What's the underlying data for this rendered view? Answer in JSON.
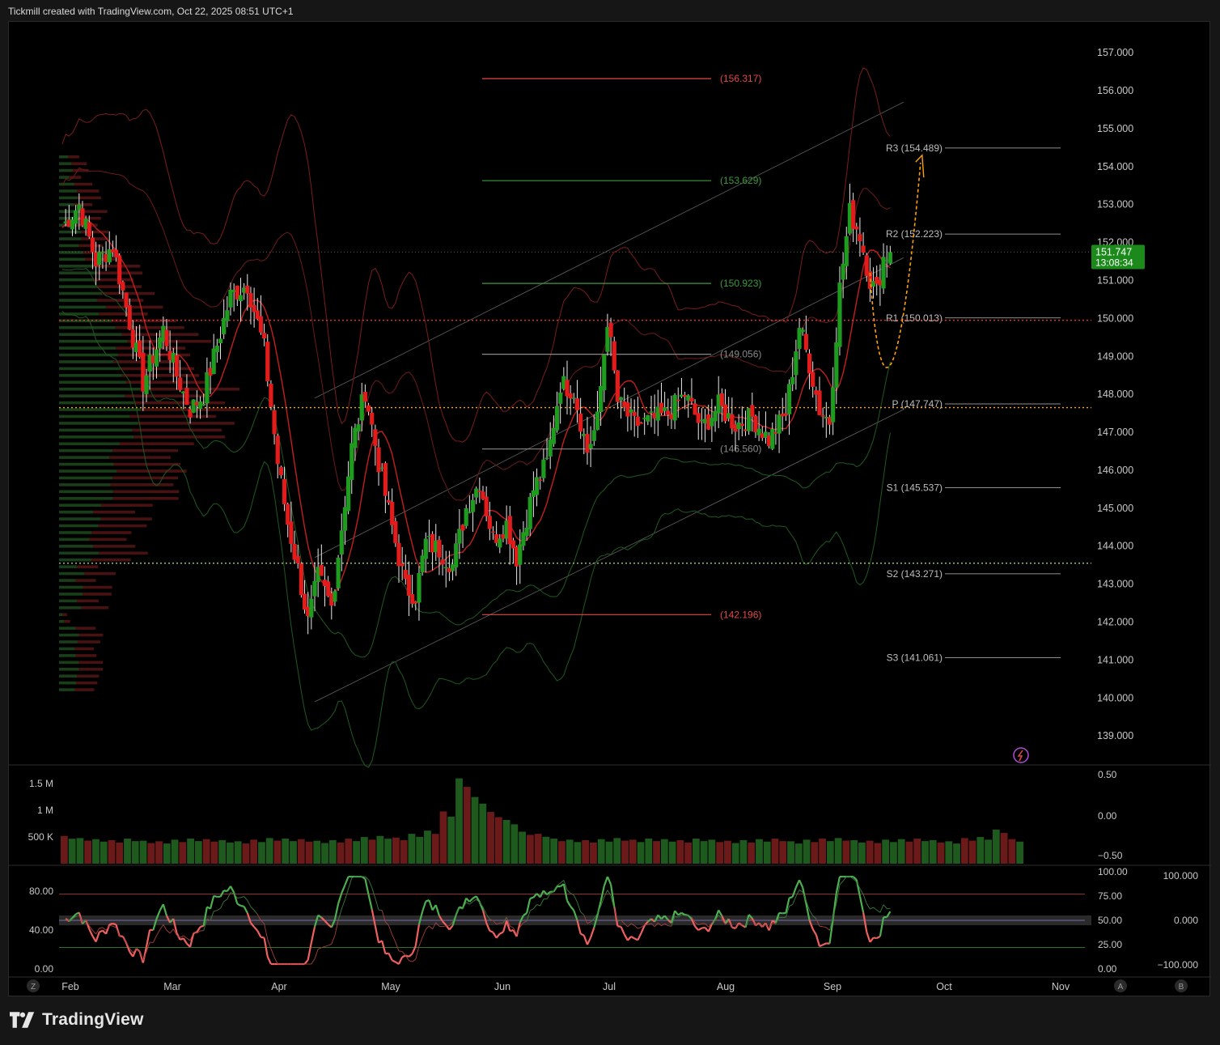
{
  "header": {
    "text": "Tickmill created with TradingView.com, Oct 22, 2025 08:51 UTC+1"
  },
  "footer": {
    "brand": "TradingView",
    "logo_icon": "tradingview-logo-icon"
  },
  "colors": {
    "up": "#1e9c1e",
    "down": "#e31b1b",
    "grid": "#1a1a1a",
    "background": "#000000",
    "accent_orange": "#ff9f0a",
    "price_badge": "#1b8a1b"
  },
  "chart_data": {
    "type": "candlestick",
    "x_labels": [
      "Feb",
      "Mar",
      "Apr",
      "May",
      "Jun",
      "Jul",
      "Aug",
      "Sep",
      "Oct",
      "Nov"
    ],
    "price_axis": {
      "ticks": [
        "157.000",
        "156.000",
        "155.000",
        "154.000",
        "153.000",
        "152.000",
        "151.000",
        "150.000",
        "149.000",
        "148.000",
        "147.000",
        "146.000",
        "145.000",
        "144.000",
        "143.000",
        "142.000",
        "141.000",
        "140.000",
        "139.000"
      ],
      "range": [
        138.3,
        157.6
      ]
    },
    "last_price": {
      "value": "151.747",
      "countdown": "13:08:34"
    },
    "fib_levels": [
      {
        "label": "(156.317)",
        "value": 156.317,
        "color": "#e34848"
      },
      {
        "label": "(153.629)",
        "value": 153.629,
        "color": "#3c9a3c"
      },
      {
        "label": "(150.923)",
        "value": 150.923,
        "color": "#3c9a3c"
      },
      {
        "label": "(149.056)",
        "value": 149.056,
        "color": "#8a8a8a"
      },
      {
        "label": "(146.560)",
        "value": 146.56,
        "color": "#8a8a8a"
      },
      {
        "label": "(142.196)",
        "value": 142.196,
        "color": "#e34848"
      }
    ],
    "pivots": [
      {
        "label": "R3 (154.489)",
        "value": 154.489
      },
      {
        "label": "R2 (152.223)",
        "value": 152.223
      },
      {
        "label": "R1 (150.013)",
        "value": 150.013
      },
      {
        "label": "P (147.747)",
        "value": 147.747
      },
      {
        "label": "S1 (145.537)",
        "value": 145.537
      },
      {
        "label": "S2 (143.271)",
        "value": 143.271
      },
      {
        "label": "S3 (141.061)",
        "value": 141.061
      }
    ],
    "dotted_levels": [
      {
        "value": 149.95,
        "color": "#ff3b3b"
      },
      {
        "value": 147.65,
        "color": "#f5a623"
      },
      {
        "value": 143.55,
        "color": "#9bd36b"
      }
    ],
    "volume_axis": {
      "ticks": [
        "1.5 M",
        "1 M",
        "500 K"
      ]
    },
    "osc_axis_right1": {
      "ticks": [
        "0.50",
        "0.00",
        "−0.50"
      ]
    },
    "rsi_axis_left": {
      "ticks": [
        "80.00",
        "40.00",
        "0.00"
      ]
    },
    "rsi_axis_right1": {
      "ticks": [
        "100.00",
        "75.00",
        "50.00",
        "25.00",
        "0.00"
      ]
    },
    "rsi_axis_right2": {
      "ticks": [
        "100.000",
        "0.000",
        "−100.000"
      ]
    },
    "bottom_buttons": [
      "Z",
      "A",
      "B"
    ],
    "close_path": [
      [
        0,
        152.4
      ],
      [
        5,
        153.0
      ],
      [
        10,
        151.5
      ],
      [
        15,
        151.9
      ],
      [
        20,
        149.9
      ],
      [
        24,
        148.3
      ],
      [
        30,
        149.7
      ],
      [
        34,
        148.5
      ],
      [
        38,
        147.6
      ],
      [
        42,
        148.0
      ],
      [
        46,
        149.3
      ],
      [
        50,
        150.6
      ],
      [
        55,
        150.9
      ],
      [
        60,
        149.2
      ],
      [
        64,
        146.2
      ],
      [
        67,
        144.6
      ],
      [
        70,
        143.4
      ],
      [
        73,
        142.0
      ],
      [
        76,
        143.2
      ],
      [
        80,
        142.4
      ],
      [
        82,
        143.8
      ],
      [
        86,
        146.6
      ],
      [
        90,
        148.1
      ],
      [
        94,
        146.2
      ],
      [
        98,
        144.5
      ],
      [
        102,
        142.9
      ],
      [
        105,
        142.7
      ],
      [
        108,
        144.1
      ],
      [
        112,
        143.9
      ],
      [
        116,
        143.5
      ],
      [
        120,
        145.0
      ],
      [
        124,
        145.7
      ],
      [
        128,
        144.2
      ],
      [
        132,
        144.6
      ],
      [
        135,
        143.7
      ],
      [
        140,
        145.5
      ],
      [
        144,
        146.2
      ],
      [
        148,
        148.3
      ],
      [
        152,
        148.1
      ],
      [
        156,
        146.5
      ],
      [
        159,
        147.3
      ],
      [
        162,
        150.0
      ],
      [
        165,
        147.8
      ],
      [
        170,
        147.2
      ],
      [
        175,
        147.3
      ],
      [
        180,
        147.5
      ],
      [
        185,
        148.0
      ],
      [
        190,
        147.1
      ],
      [
        195,
        147.7
      ],
      [
        200,
        147.2
      ],
      [
        205,
        147.4
      ],
      [
        210,
        146.8
      ],
      [
        215,
        147.5
      ],
      [
        219,
        149.8
      ],
      [
        222,
        148.8
      ],
      [
        225,
        147.6
      ],
      [
        228,
        147.3
      ],
      [
        231,
        150.8
      ],
      [
        234,
        152.8
      ],
      [
        237,
        152.2
      ],
      [
        240,
        151.0
      ],
      [
        242,
        150.7
      ],
      [
        244,
        151.6
      ],
      [
        246,
        151.747
      ]
    ],
    "volume_bars": [
      520,
      480,
      460,
      440,
      470,
      430,
      420,
      450,
      470,
      460,
      440,
      420,
      450,
      480,
      470,
      460,
      430,
      440,
      470,
      500,
      520,
      490,
      560,
      620,
      980,
      1600,
      1250,
      970,
      820,
      600,
      560,
      470,
      450,
      440,
      460,
      480,
      450,
      470,
      460,
      440,
      470,
      450,
      430,
      440,
      460,
      470,
      420,
      450,
      470,
      480,
      440,
      430,
      450,
      460,
      470,
      440,
      420,
      480,
      500,
      640,
      460
    ]
  }
}
